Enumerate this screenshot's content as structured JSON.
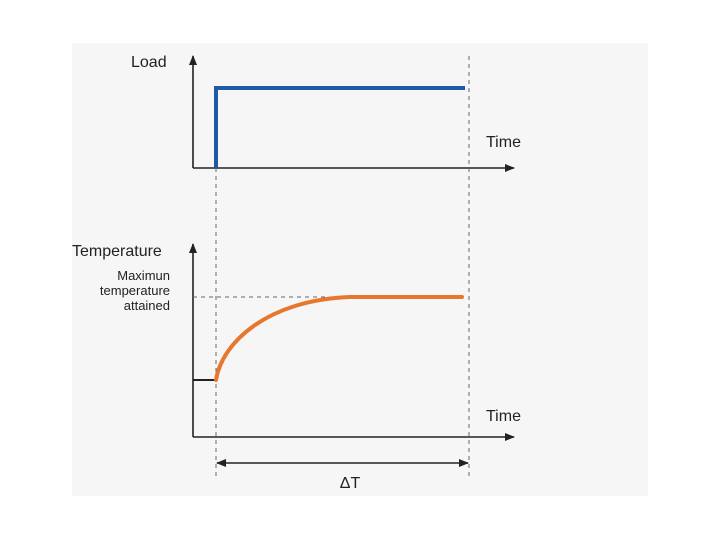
{
  "diagram": {
    "top_panel": {
      "y_axis_label": "Load",
      "x_axis_label": "Time"
    },
    "bottom_panel": {
      "y_axis_label": "Temperature",
      "max_temp_label_lines": [
        "Maximun",
        "temperature",
        "attained"
      ],
      "x_axis_label": "Time"
    },
    "interval_label": "ΔT",
    "colors": {
      "load_line": "#1f5aa6",
      "temperature_curve": "#e8772e",
      "axis": "#222222",
      "guide": "#666666",
      "background": "#f6f6f6"
    }
  }
}
